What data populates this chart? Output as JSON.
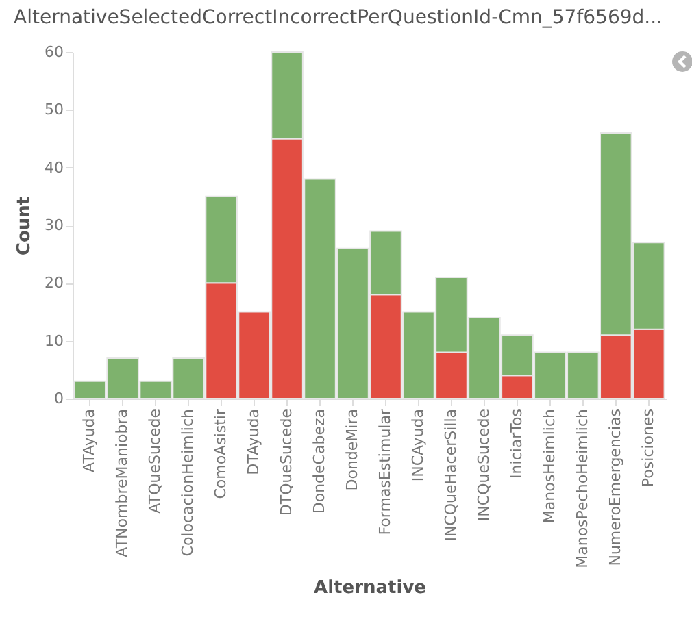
{
  "chart_data": {
    "type": "bar",
    "title": "AlternativeSelectedCorrectIncorrectPerQuestionId-Cmn_57f6569d...",
    "xlabel": "Alternative",
    "ylabel": "Count",
    "categories": [
      "ATAyuda",
      "ATNombreManiobra",
      "ATQueSucede",
      "ColocacionHeimlich",
      "ComoAsistir",
      "DTAyuda",
      "DTQueSucede",
      "DondeCabeza",
      "DondeMira",
      "FormasEstimular",
      "INCAyuda",
      "INCQueHacerSilla",
      "INCQueSucede",
      "IniciarTos",
      "ManosHeimlich",
      "ManosPechoHeimlich",
      "NumeroEmergencias",
      "Posiciones"
    ],
    "stacked": true,
    "series": [
      {
        "color": "#e24d42",
        "values": [
          null,
          null,
          null,
          null,
          20,
          15,
          45,
          null,
          null,
          18,
          null,
          8,
          null,
          4,
          null,
          null,
          11,
          12
        ]
      },
      {
        "color": "#7eb26d",
        "values": [
          3,
          7,
          3,
          7,
          15,
          null,
          15,
          38,
          26,
          11,
          15,
          13,
          14,
          7,
          8,
          8,
          35,
          15
        ]
      }
    ],
    "ylim": [
      0,
      60
    ],
    "yticks": [
      0,
      10,
      20,
      30,
      40,
      50,
      60
    ],
    "grid": false
  }
}
